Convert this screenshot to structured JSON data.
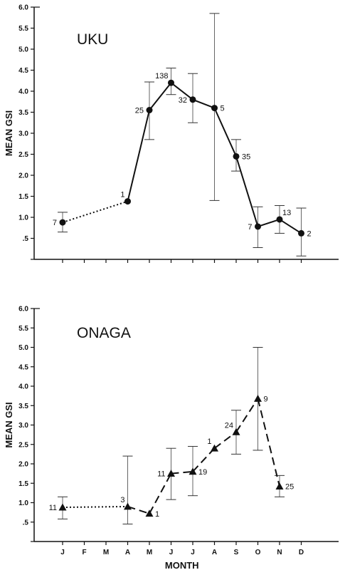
{
  "chart_data": [
    {
      "type": "line",
      "title": "UKU",
      "xlabel": "",
      "ylabel": "MEAN GSI",
      "ylim": [
        0,
        6.0
      ],
      "y_ticks": [
        "",
        ".5",
        "1.0",
        "1.5",
        "2.0",
        "2.5",
        "3.0",
        "3.5",
        "4.0",
        "4.5",
        "5.0",
        "5.5",
        "6.0"
      ],
      "categories": [
        "J",
        "F",
        "M",
        "A",
        "M",
        "J",
        "J",
        "A",
        "S",
        "O",
        "N",
        "D"
      ],
      "marker": "circle",
      "points": [
        {
          "month": 0,
          "y": 0.88,
          "low": 0.65,
          "high": 1.12,
          "n": "7",
          "label_pos": "left"
        },
        {
          "month": 3,
          "y": 1.38,
          "low": null,
          "high": null,
          "n": "1",
          "label_pos": "above-left"
        },
        {
          "month": 4,
          "y": 3.55,
          "low": 2.85,
          "high": 4.22,
          "n": "25",
          "label_pos": "left"
        },
        {
          "month": 5,
          "y": 4.2,
          "low": 3.92,
          "high": 4.55,
          "n": "138",
          "label_pos": "above-left"
        },
        {
          "month": 6,
          "y": 3.8,
          "low": 3.25,
          "high": 4.42,
          "n": "32",
          "label_pos": "left"
        },
        {
          "month": 7,
          "y": 3.6,
          "low": 1.4,
          "high": 5.85,
          "n": "5",
          "label_pos": "right"
        },
        {
          "month": 8,
          "y": 2.45,
          "low": 2.1,
          "high": 2.85,
          "n": "35",
          "label_pos": "right"
        },
        {
          "month": 9,
          "y": 0.78,
          "low": 0.28,
          "high": 1.25,
          "n": "7",
          "label_pos": "left"
        },
        {
          "month": 10,
          "y": 0.95,
          "low": 0.62,
          "high": 1.28,
          "n": "13",
          "label_pos": "above-right"
        },
        {
          "month": 11,
          "y": 0.62,
          "low": 0.08,
          "high": 1.22,
          "n": "2",
          "label_pos": "right"
        }
      ],
      "dotted_segments": [
        [
          0,
          1
        ]
      ]
    },
    {
      "type": "line",
      "title": "ONAGA",
      "xlabel": "MONTH",
      "ylabel": "MEAN GSI",
      "ylim": [
        0,
        6.0
      ],
      "y_ticks": [
        "",
        ".5",
        "1.0",
        "1.5",
        "2.0",
        "2.5",
        "3.0",
        "3.5",
        "4.0",
        "4.5",
        "5.0",
        "5.5",
        "6.0"
      ],
      "categories": [
        "J",
        "F",
        "M",
        "A",
        "M",
        "J",
        "J",
        "A",
        "S",
        "O",
        "N",
        "D"
      ],
      "marker": "triangle",
      "points": [
        {
          "month": 0,
          "y": 0.88,
          "low": 0.58,
          "high": 1.15,
          "n": "11",
          "label_pos": "left"
        },
        {
          "month": 3,
          "y": 0.9,
          "low": 0.45,
          "high": 2.2,
          "n": "3",
          "label_pos": "above-left"
        },
        {
          "month": 4,
          "y": 0.72,
          "low": null,
          "high": null,
          "n": "1",
          "label_pos": "right"
        },
        {
          "month": 5,
          "y": 1.75,
          "low": 1.08,
          "high": 2.4,
          "n": "11",
          "label_pos": "left"
        },
        {
          "month": 6,
          "y": 1.8,
          "low": 1.18,
          "high": 2.45,
          "n": "19",
          "label_pos": "right"
        },
        {
          "month": 7,
          "y": 2.4,
          "low": null,
          "high": null,
          "n": "1",
          "label_pos": "above-left"
        },
        {
          "month": 8,
          "y": 2.82,
          "low": 2.25,
          "high": 3.38,
          "n": "24",
          "label_pos": "above-left"
        },
        {
          "month": 9,
          "y": 3.68,
          "low": 2.35,
          "high": 5.0,
          "n": "9",
          "label_pos": "right"
        },
        {
          "month": 10,
          "y": 1.42,
          "low": 1.15,
          "high": 1.7,
          "n": "25",
          "label_pos": "right"
        }
      ],
      "dotted_segments": [
        [
          0,
          1
        ]
      ]
    }
  ]
}
